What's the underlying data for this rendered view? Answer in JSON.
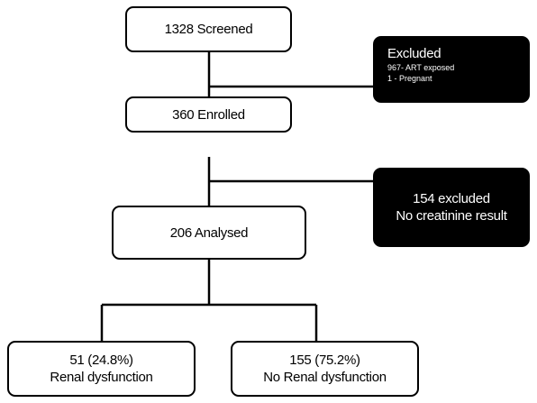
{
  "nodes": {
    "screened": {
      "label": "1328 Screened"
    },
    "enrolled": {
      "label": "360 Enrolled"
    },
    "analysed": {
      "label": "206 Analysed"
    },
    "renal_dysfunction": {
      "line1": "51 (24.8%)",
      "line2": "Renal dysfunction"
    },
    "no_renal_dysfunction": {
      "line1": "155 (75.2%)",
      "line2": "No Renal dysfunction"
    }
  },
  "exclusions": {
    "first": {
      "title": "Excluded",
      "detail1": "967- ART exposed",
      "detail2": "1 - Pregnant"
    },
    "second": {
      "line1": "154 excluded",
      "line2": "No creatinine result"
    }
  }
}
